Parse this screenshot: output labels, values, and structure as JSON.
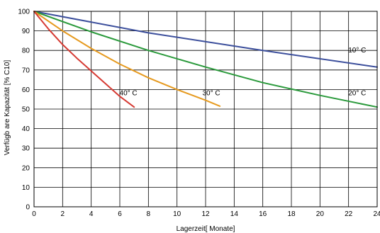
{
  "chart_data": {
    "type": "line",
    "xlabel": "Lagerzeit[ Monate]",
    "ylabel": "Verfügb are Kapazität [% C10]",
    "xlim": [
      0,
      24
    ],
    "ylim": [
      0,
      100
    ],
    "xticks": [
      "0",
      "2",
      "4",
      "6",
      "8",
      "10",
      "12",
      "14",
      "16",
      "18",
      "20",
      "22",
      "24"
    ],
    "yticks": [
      "0",
      "10",
      "20",
      "30",
      "40",
      "50",
      "60",
      "70",
      "80",
      "90",
      "100"
    ],
    "grid": true,
    "series": [
      {
        "name": "10° C",
        "color": "#3c4f9c",
        "points": [
          [
            0,
            100
          ],
          [
            8,
            89
          ],
          [
            16,
            80
          ],
          [
            24,
            71.5
          ]
        ]
      },
      {
        "name": "20° C",
        "color": "#2b9a3c",
        "points": [
          [
            0,
            100
          ],
          [
            4,
            89.5
          ],
          [
            8,
            80
          ],
          [
            12,
            71.5
          ],
          [
            16,
            63.5
          ],
          [
            20,
            57
          ],
          [
            24,
            51
          ]
        ]
      },
      {
        "name": "30° C",
        "color": "#e69a1f",
        "points": [
          [
            0,
            100
          ],
          [
            2,
            90
          ],
          [
            4,
            81
          ],
          [
            6,
            73
          ],
          [
            8,
            66
          ],
          [
            10,
            60
          ],
          [
            12,
            54.5
          ],
          [
            13,
            51.5
          ]
        ]
      },
      {
        "name": "40° C",
        "color": "#d63a33",
        "points": [
          [
            0,
            100
          ],
          [
            1,
            91
          ],
          [
            2,
            83
          ],
          [
            3,
            76
          ],
          [
            4,
            69.5
          ],
          [
            5,
            63
          ],
          [
            6,
            56.5
          ],
          [
            7,
            51
          ]
        ]
      }
    ],
    "series_labels": [
      {
        "name": "10° C",
        "x": 22.6,
        "y": 79
      },
      {
        "name": "20° C",
        "x": 22.6,
        "y": 57
      },
      {
        "name": "30° C",
        "x": 12.4,
        "y": 57
      },
      {
        "name": "40° C",
        "x": 6.6,
        "y": 57
      }
    ]
  }
}
